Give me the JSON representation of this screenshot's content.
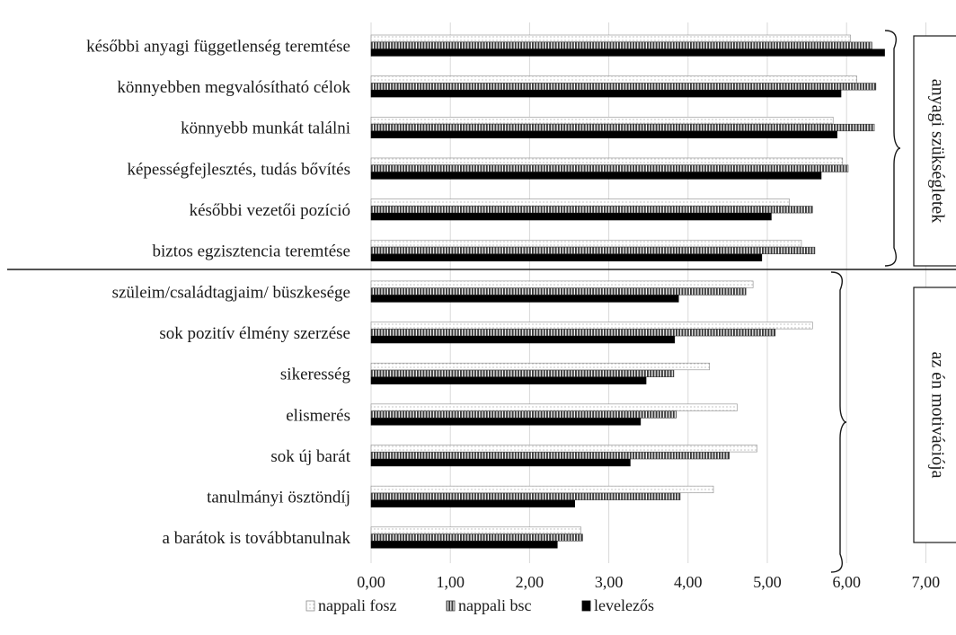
{
  "chart_data": {
    "type": "bar",
    "orientation": "horizontal",
    "categories": [
      "későbbi anyagi függetlenség teremtése",
      "könnyebben megvalósítható célok",
      "könnyebb munkát találni",
      "képességfejlesztés, tudás bővítés",
      "későbbi vezetői pozíció",
      "biztos egzisztencia teremtése",
      "szüleim/családtagjaim/ büszkesége",
      "sok pozitív élmény szerzése",
      "sikeresség",
      "elismerés",
      "sok új barát",
      "tanulmányi ösztöndíj",
      "a barátok is továbbtanulnak"
    ],
    "series": [
      {
        "name": "nappali fosz",
        "pattern": "dotted",
        "values": [
          6.05,
          6.13,
          5.83,
          5.95,
          5.28,
          5.43,
          4.82,
          5.57,
          4.27,
          4.62,
          4.87,
          4.32,
          2.65
        ]
      },
      {
        "name": "nappali bsc",
        "pattern": "vertical-lines",
        "values": [
          6.32,
          6.37,
          6.35,
          6.02,
          5.57,
          5.6,
          4.73,
          5.1,
          3.82,
          3.85,
          4.52,
          3.9,
          2.67
        ]
      },
      {
        "name": "levelezős",
        "pattern": "solid-black",
        "values": [
          6.48,
          5.93,
          5.88,
          5.68,
          5.05,
          4.93,
          3.88,
          3.83,
          3.47,
          3.4,
          3.27,
          2.57,
          2.35
        ]
      }
    ],
    "x_ticks": [
      "0,00",
      "1,00",
      "2,00",
      "3,00",
      "4,00",
      "5,00",
      "6,00",
      "7,00"
    ],
    "xlim": [
      0,
      7
    ],
    "grid": true,
    "legend_position": "bottom",
    "groups": [
      {
        "label": "anyagi szükségletek",
        "first_category": 0,
        "last_category": 5
      },
      {
        "label": "az én motivációja",
        "first_category": 6,
        "last_category": 12
      }
    ]
  }
}
